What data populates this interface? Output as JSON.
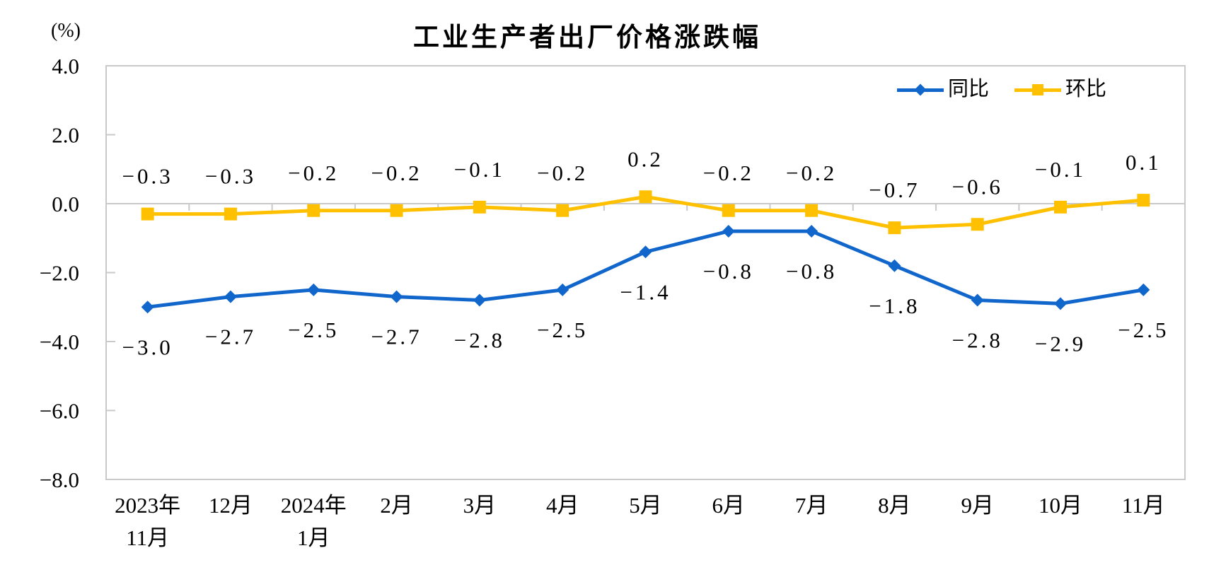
{
  "chart_data": {
    "type": "line",
    "title": "工业生产者出厂价格涨跌幅",
    "unit_label": "(%)",
    "categories": [
      "2023年\n11月",
      "12月",
      "2024年\n1月",
      "2月",
      "3月",
      "4月",
      "5月",
      "6月",
      "7月",
      "8月",
      "9月",
      "10月",
      "11月"
    ],
    "series": [
      {
        "name": "同比",
        "color": "#1166CC",
        "marker": "diamond",
        "label_position": "below",
        "values": [
          -3.0,
          -2.7,
          -2.5,
          -2.7,
          -2.8,
          -2.5,
          -1.4,
          -0.8,
          -0.8,
          -1.8,
          -2.8,
          -2.9,
          -2.5
        ]
      },
      {
        "name": "环比",
        "color": "#FFC000",
        "marker": "square",
        "label_position": "above",
        "values": [
          -0.3,
          -0.3,
          -0.2,
          -0.2,
          -0.1,
          -0.2,
          0.2,
          -0.2,
          -0.2,
          -0.7,
          -0.6,
          -0.1,
          0.1
        ]
      }
    ],
    "y_axis": {
      "min": -8,
      "max": 4,
      "step": 2,
      "tick_labels": [
        "4.0",
        "2.0",
        "0.0",
        "-2.0",
        "-4.0",
        "-6.0",
        "-8.0"
      ]
    },
    "legend_position": "top-right",
    "grid": false,
    "axis_color": "#C9C9C9",
    "text_color": "#000000"
  }
}
